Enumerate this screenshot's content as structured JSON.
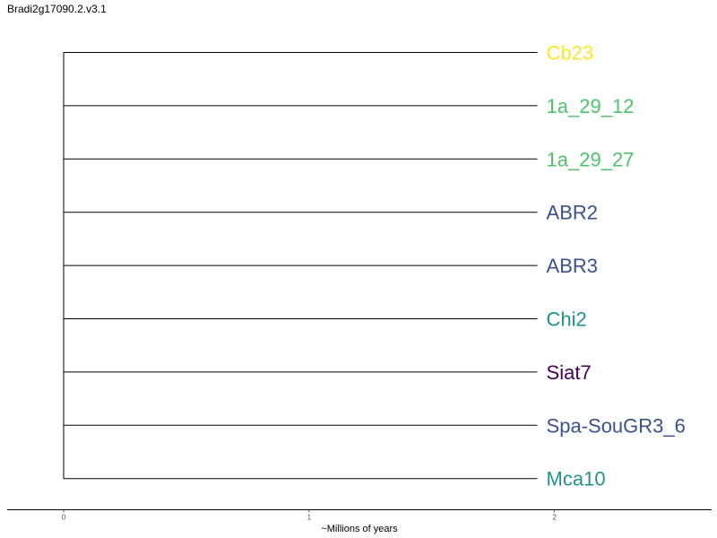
{
  "title": "Bradi2g17090.2.v3.1",
  "tree": {
    "tips": [
      {
        "label": "Cb23",
        "color": "#FDE725"
      },
      {
        "label": "1a_29_12",
        "color": "#4DC36B"
      },
      {
        "label": "1a_29_27",
        "color": "#4DC36B"
      },
      {
        "label": "ABR2",
        "color": "#3B518B"
      },
      {
        "label": "ABR3",
        "color": "#3B518B"
      },
      {
        "label": "Chi2",
        "color": "#20928C"
      },
      {
        "label": "Siat7",
        "color": "#440154"
      },
      {
        "label": "Spa-SouGR3_6",
        "color": "#3B518B"
      },
      {
        "label": "Mca10",
        "color": "#20928C"
      }
    ],
    "tip_depth": 1.93,
    "root_depth": 0,
    "branch_color": "#000000"
  },
  "axis": {
    "xlabel": "~Millions of years",
    "ticks": [
      0,
      1,
      2
    ],
    "xlim": [
      -0.23,
      2.64
    ]
  }
}
